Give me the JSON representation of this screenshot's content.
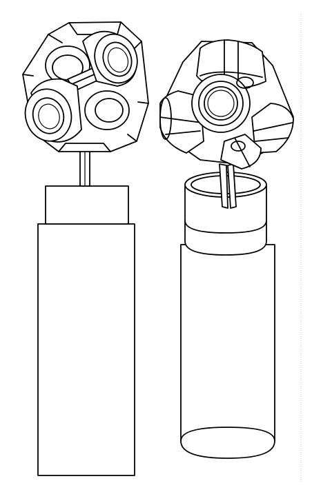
{
  "figure": {
    "colors": {
      "line": "#000000",
      "fill": "#ffffff",
      "background": "#ffffff"
    },
    "items": [
      {
        "id": "left",
        "parts": [
          "cube-node",
          "connector-rod",
          "handle-cap",
          "handle-body"
        ]
      },
      {
        "id": "right",
        "parts": [
          "cube-node",
          "connector-rod",
          "handle-cap",
          "handle-body"
        ]
      }
    ]
  }
}
